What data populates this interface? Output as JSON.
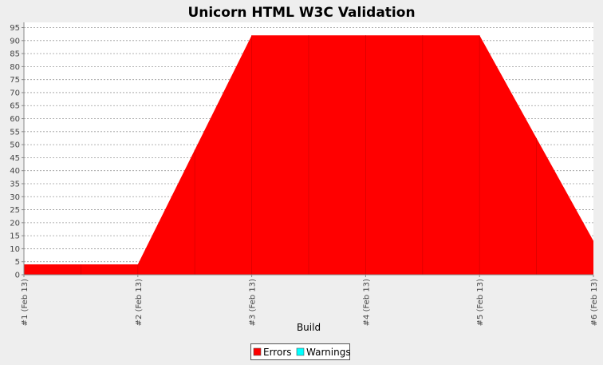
{
  "chart_data": {
    "type": "area",
    "title": "Unicorn HTML W3C Validation",
    "xlabel": "Build",
    "ylabel": "",
    "categories": [
      "#1 (Feb 13)",
      "#2 (Feb 13)",
      "#3 (Feb 13)",
      "#4 (Feb 13)",
      "#5 (Feb 13)",
      "#6 (Feb 13)"
    ],
    "series": [
      {
        "name": "Errors",
        "values": [
          4,
          4,
          92,
          92,
          92,
          13
        ],
        "color": "#ff0000"
      },
      {
        "name": "Warnings",
        "values": [
          0,
          0,
          0,
          0,
          0,
          0
        ],
        "color": "#00ffff"
      }
    ],
    "ylim": [
      0,
      97
    ],
    "yticks": [
      0,
      5,
      10,
      15,
      20,
      25,
      30,
      35,
      40,
      45,
      50,
      55,
      60,
      65,
      70,
      75,
      80,
      85,
      90,
      95
    ],
    "grid": true,
    "legend_position": "bottom"
  }
}
